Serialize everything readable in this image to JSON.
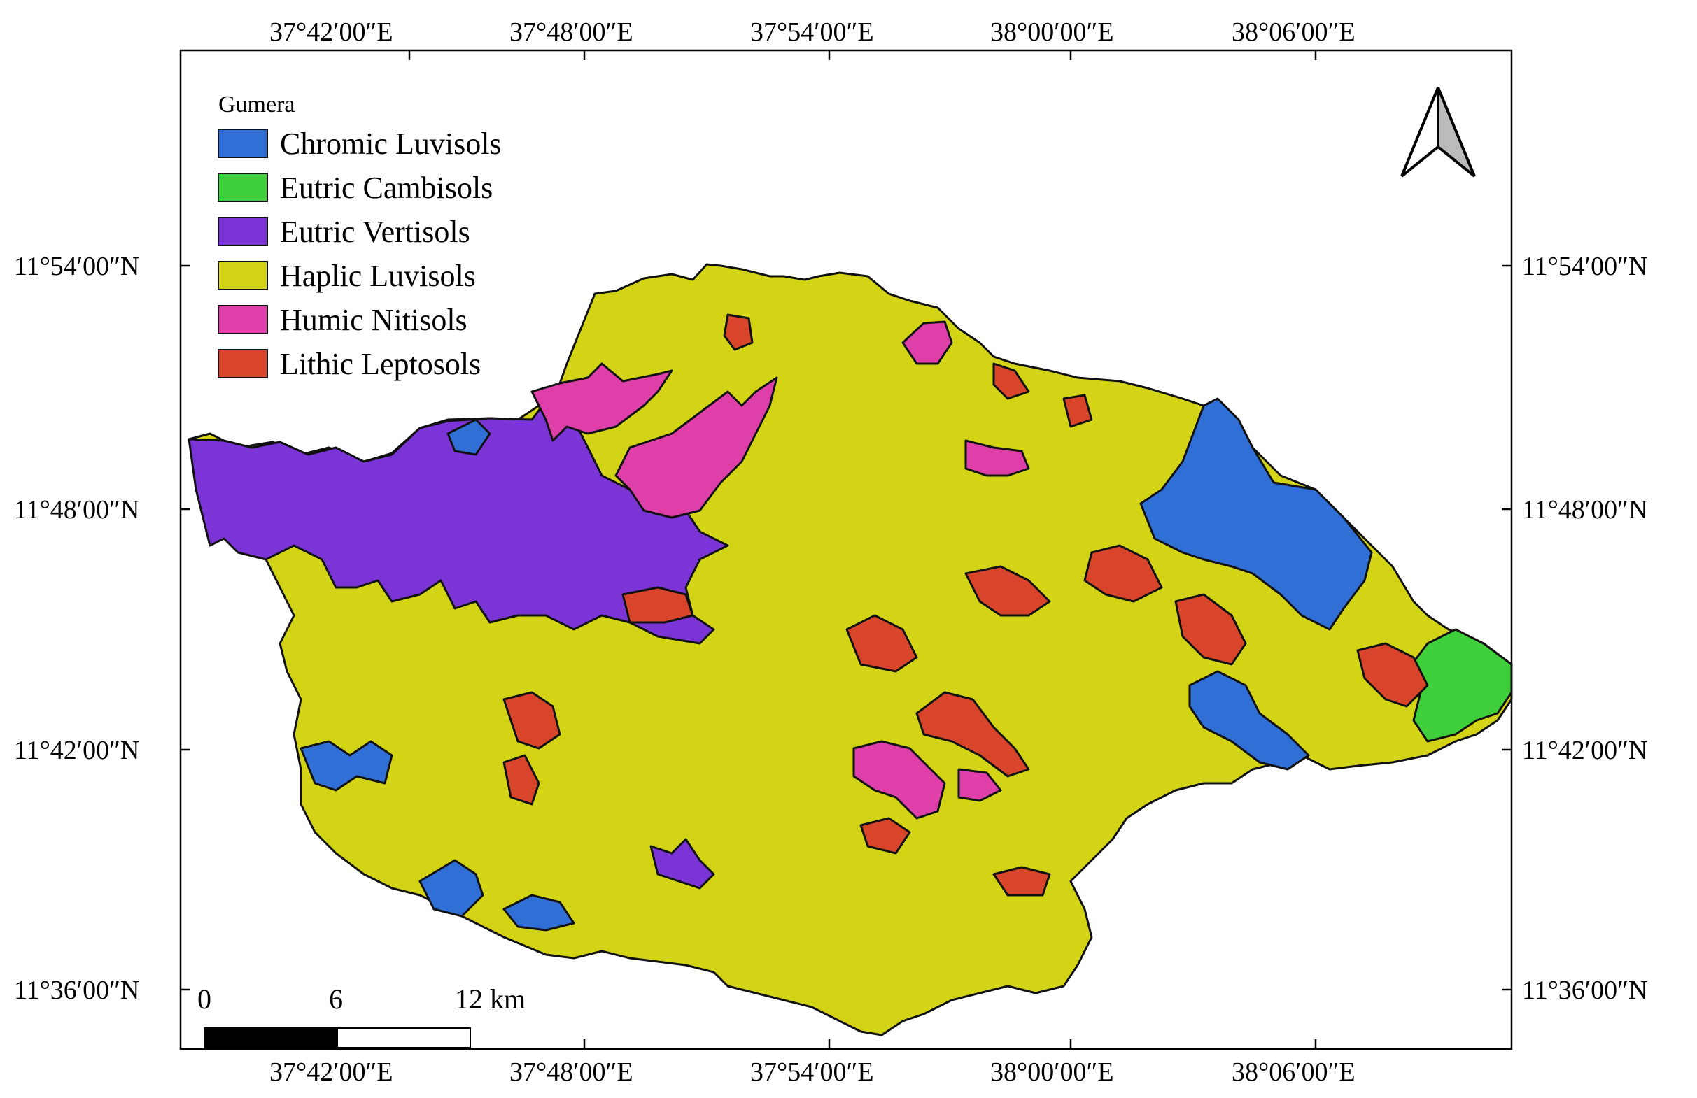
{
  "map": {
    "lon_ticks": [
      "37°42′00″E",
      "37°48′00″E",
      "37°54′00″E",
      "38°00′00″E",
      "38°06′00″E"
    ],
    "lat_ticks": [
      "11°54′00″N",
      "11°48′00″N",
      "11°42′00″N",
      "11°36′00″N"
    ]
  },
  "legend": {
    "title": "Gumera",
    "items": [
      {
        "label": "Chromic Luvisols",
        "color": "#2f6fd6"
      },
      {
        "label": "Eutric Cambisols",
        "color": "#3fcf3a"
      },
      {
        "label": "Eutric Vertisols",
        "color": "#7b34d6"
      },
      {
        "label": "Haplic Luvisols",
        "color": "#d2d415"
      },
      {
        "label": "Humic Nitisols",
        "color": "#de3fa8"
      },
      {
        "label": "Lithic Leptosols",
        "color": "#d8452a"
      }
    ]
  },
  "north_arrow": {
    "icon": "north-arrow-icon"
  },
  "scale_bar": {
    "labels": [
      "0",
      "6",
      "12 km"
    ]
  }
}
